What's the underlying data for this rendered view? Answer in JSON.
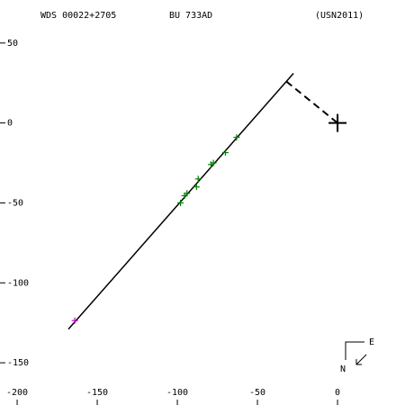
{
  "chart_data": {
    "type": "scatter",
    "title": "WDS 00022+2705",
    "subtitle": "BU  733AD",
    "reference": "(USN2011)",
    "compass": {
      "east": "E",
      "north": "N"
    },
    "xlim": [
      -210.7,
      42.1
    ],
    "ylim": [
      -176.4,
      76.9
    ],
    "xticks": [
      -200,
      -150,
      -100,
      -50,
      0
    ],
    "yticks": [
      50,
      0,
      -50,
      -100,
      -150
    ],
    "series": [
      {
        "mode": "line",
        "color": "#000000",
        "x": [
          -168,
          -27.5
        ],
        "values": [
          -129,
          31
        ]
      },
      {
        "mode": "dashed",
        "color": "#000000",
        "x": [
          -32,
          0
        ],
        "values": [
          26,
          0
        ]
      },
      {
        "mode": "plus",
        "color": "#008000",
        "x": [
          -63,
          -70,
          -77.5,
          -79,
          -87,
          -88,
          -94,
          -95.5,
          -98
        ],
        "values": [
          -9,
          -18.5,
          -25,
          -26,
          -35,
          -40,
          -44,
          -45.5,
          -50
        ]
      },
      {
        "mode": "plus",
        "color": "#cc00cc",
        "x": [
          -164
        ],
        "values": [
          -123.6
        ]
      },
      {
        "mode": "cross",
        "color": "#000000",
        "x": [
          0
        ],
        "values": [
          0
        ]
      }
    ]
  }
}
